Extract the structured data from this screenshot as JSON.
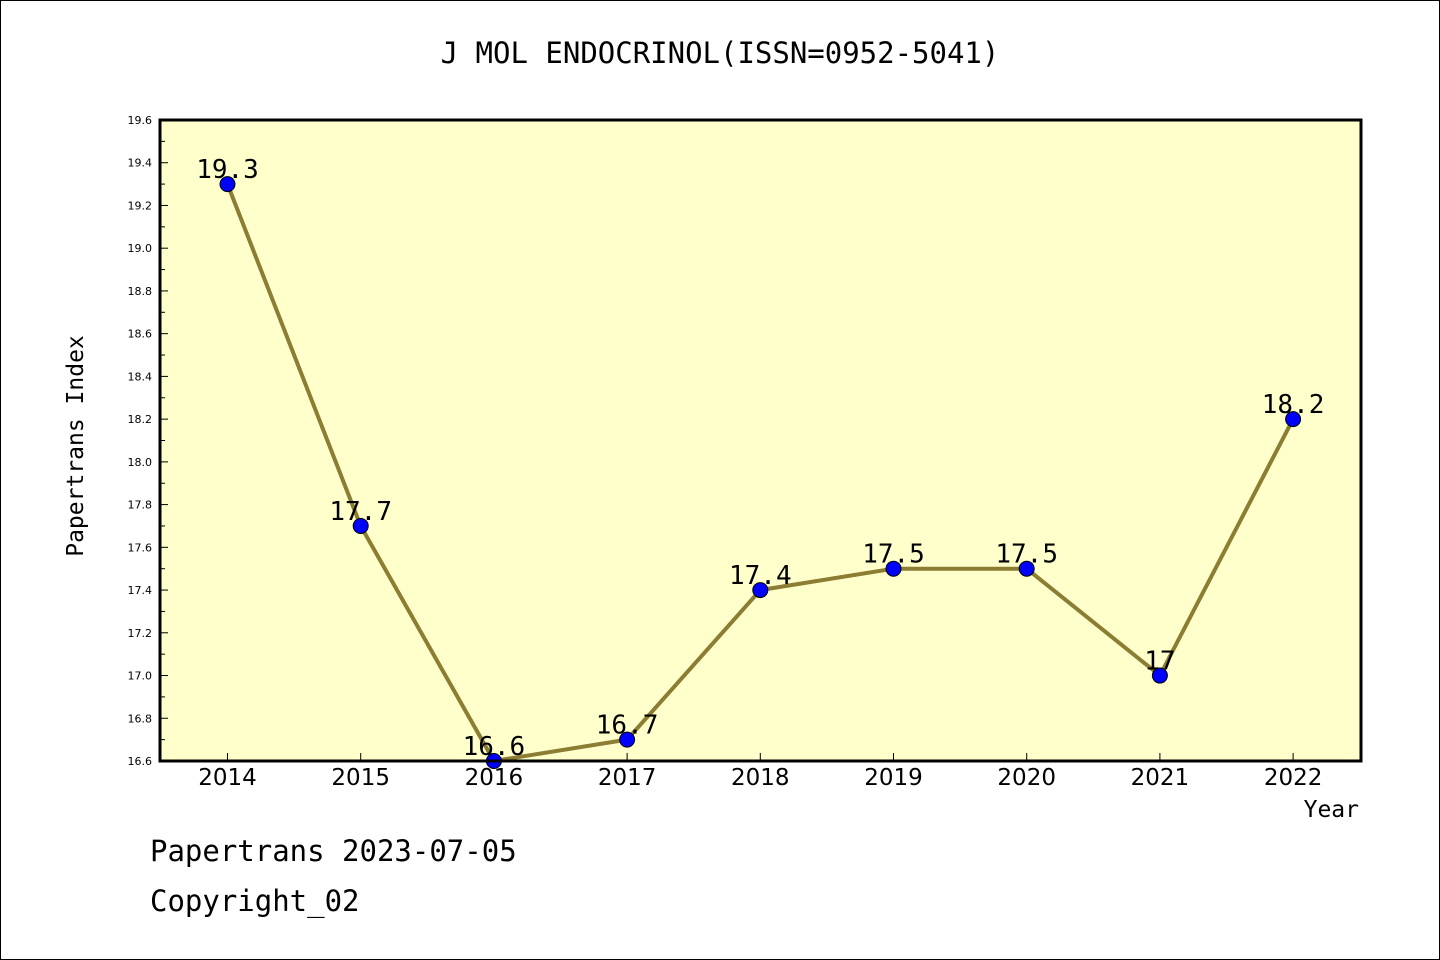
{
  "page": {
    "title": "J MOL ENDOCRINOL(ISSN=0952-5041)",
    "footer_line1": "Papertrans 2023-07-05",
    "footer_line2": "Copyright_02"
  },
  "chart_data": {
    "type": "line",
    "title": "J MOL ENDOCRINOL(ISSN=0952-5041)",
    "xlabel": "Year",
    "ylabel": "Papertrans Index",
    "categories": [
      "2014",
      "2015",
      "2016",
      "2017",
      "2018",
      "2019",
      "2020",
      "2021",
      "2022"
    ],
    "series": [
      {
        "values": [
          19.3,
          17.7,
          16.6,
          16.7,
          17.4,
          17.5,
          17.5,
          17.0,
          18.2
        ]
      }
    ],
    "data_labels": [
      "19.3",
      "17.7",
      "16.6",
      "16.7",
      "17.4",
      "17.5",
      "17.5",
      "17",
      "18.2"
    ],
    "ylim": [
      16.6,
      19.6
    ],
    "yticks": [
      "16.6",
      "16.8",
      "17.0",
      "17.2",
      "17.4",
      "17.6",
      "17.8",
      "18.0",
      "18.2",
      "18.4",
      "18.6",
      "18.8",
      "19.0",
      "19.2",
      "19.4",
      "19.6"
    ],
    "grid": false,
    "colors": {
      "plot_background": "#ffffcc",
      "line": "#8b7d32",
      "marker": "#0000ff"
    }
  }
}
